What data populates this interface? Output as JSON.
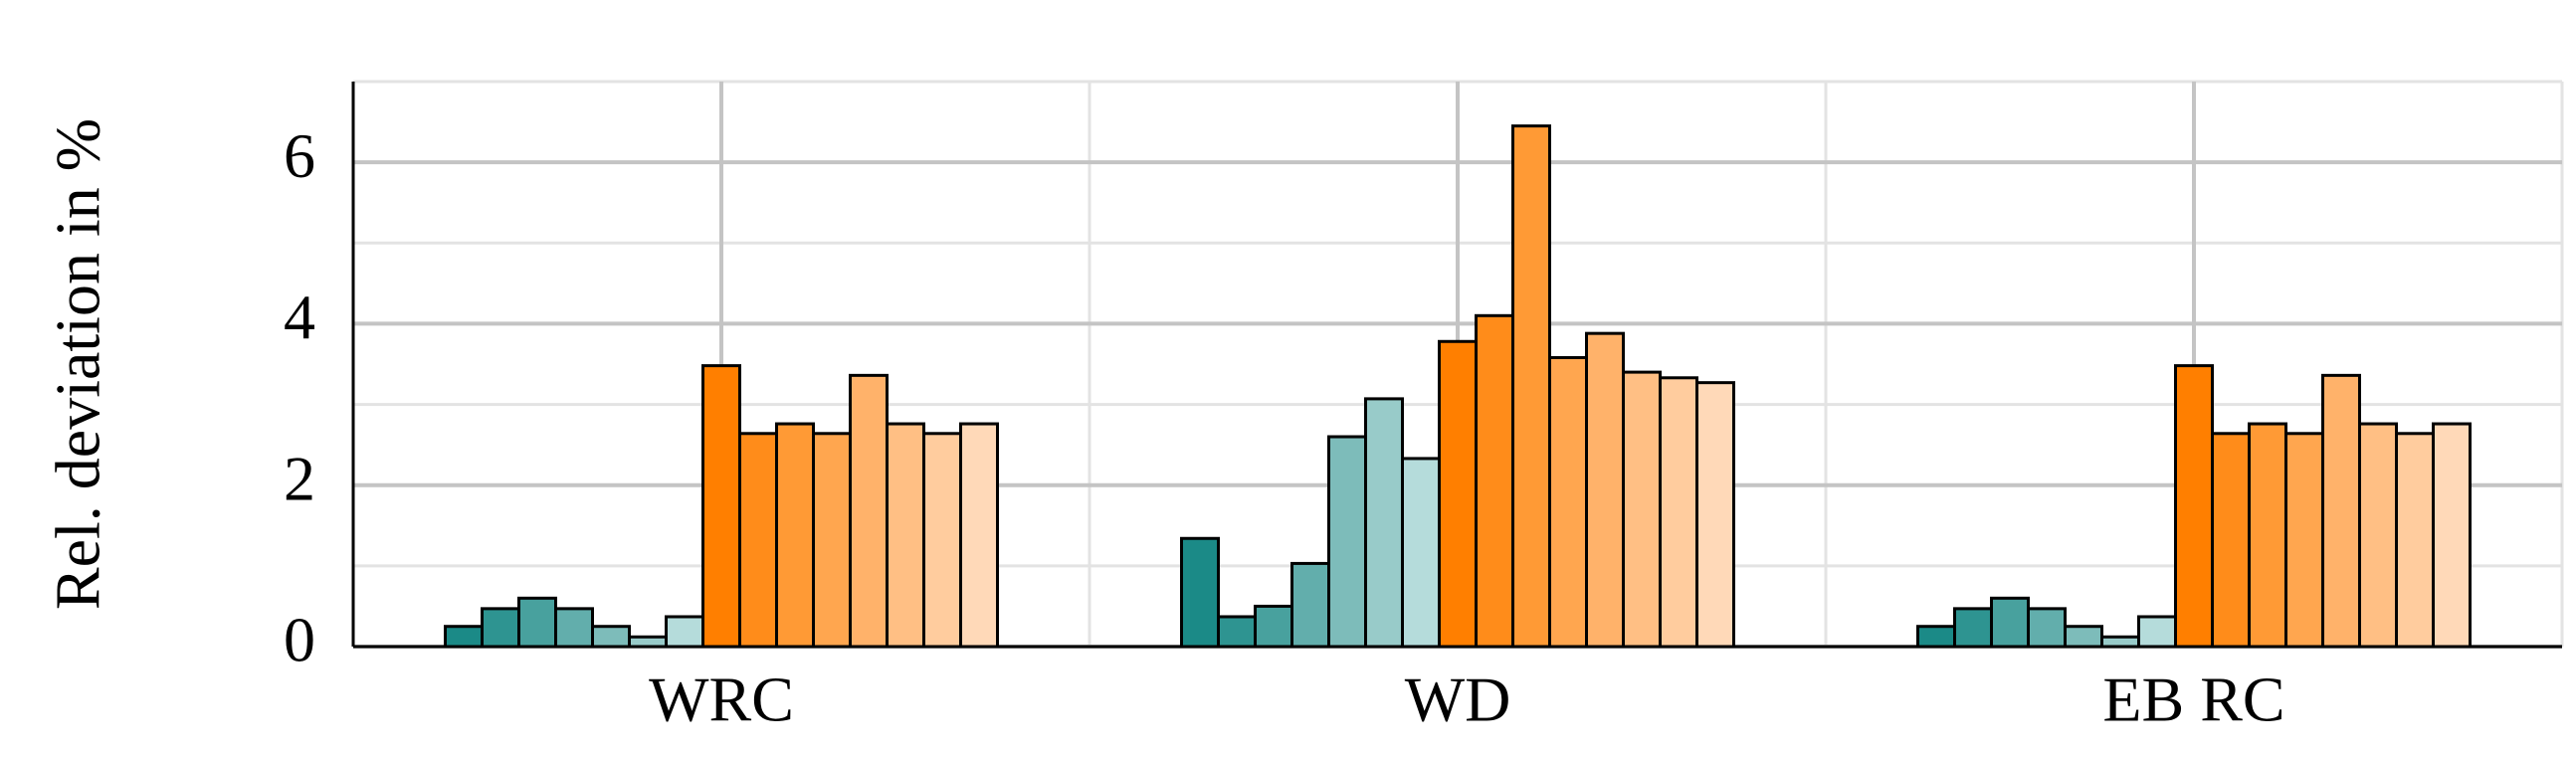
{
  "chart_data": {
    "type": "bar",
    "ylabel": "Rel. deviation in %",
    "categories": [
      "WRC",
      "WD",
      "EB RC"
    ],
    "ylim": [
      0,
      7
    ],
    "yticks": [
      0,
      2,
      4,
      6
    ],
    "grid": true,
    "series": [
      {
        "color": "#1b8a87",
        "values": [
          0.25,
          1.34,
          0.25
        ]
      },
      {
        "color": "#2e9491",
        "values": [
          0.47,
          0.37,
          0.47
        ]
      },
      {
        "color": "#48a19e",
        "values": [
          0.6,
          0.5,
          0.6
        ]
      },
      {
        "color": "#62aeac",
        "values": [
          0.47,
          1.03,
          0.47
        ]
      },
      {
        "color": "#7dbcba",
        "values": [
          0.25,
          2.6,
          0.25
        ]
      },
      {
        "color": "#98cbc9",
        "values": [
          0.12,
          3.07,
          0.12
        ]
      },
      {
        "color": "#b5dcdb",
        "values": [
          0.37,
          2.33,
          0.37
        ]
      },
      {
        "color": "#ff7f00",
        "values": [
          3.48,
          3.78,
          3.48
        ]
      },
      {
        "color": "#ff8c1a",
        "values": [
          2.64,
          4.1,
          2.64
        ]
      },
      {
        "color": "#ff9a35",
        "values": [
          2.76,
          6.45,
          2.76
        ]
      },
      {
        "color": "#ffa64f",
        "values": [
          2.64,
          3.58,
          2.64
        ]
      },
      {
        "color": "#ffb26a",
        "values": [
          3.36,
          3.88,
          3.36
        ]
      },
      {
        "color": "#ffbf84",
        "values": [
          2.76,
          3.4,
          2.76
        ]
      },
      {
        "color": "#ffcc9e",
        "values": [
          2.64,
          3.33,
          2.64
        ]
      },
      {
        "color": "#ffd9b8",
        "values": [
          2.76,
          3.27,
          2.76
        ]
      }
    ]
  }
}
